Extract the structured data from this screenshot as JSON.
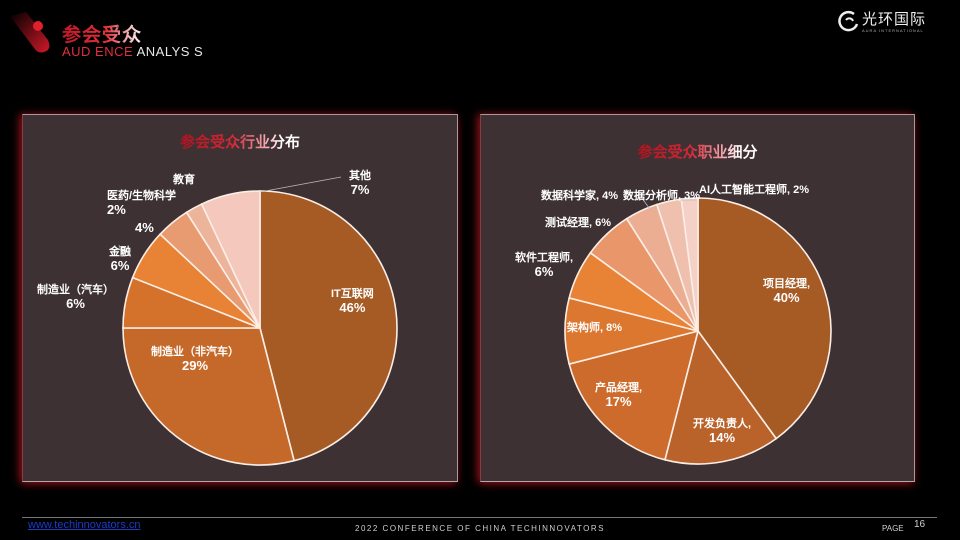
{
  "header": {
    "title_cn": "参会受众",
    "title_en_red": "AUD ENCE",
    "title_en_white": "ANALYS S",
    "brand_cn": "光环国际",
    "brand_en": "AURA INTERNATIONAL",
    "accent_color": "#e0303c"
  },
  "footer": {
    "link": "www.techinnovators.cn",
    "conference": "2022 CONFERENCE OF CHINA TECHINNOVATORS",
    "page_label": "PAGE",
    "page_number": "16"
  },
  "chart_data": [
    {
      "type": "pie",
      "title": "参会受众行业分布",
      "categories": [
        "IT互联网",
        "制造业（非汽车）",
        "制造业（汽车）",
        "金融",
        "4%",
        "医药/生物科学",
        "教育/其他"
      ],
      "slices": [
        {
          "label": "IT互联网",
          "value": 46,
          "color": "#a65a24"
        },
        {
          "label": "制造业（非汽车）",
          "value": 29,
          "color": "#c5692a"
        },
        {
          "label": "制造业（汽车）",
          "value": 6,
          "color": "#d4722c"
        },
        {
          "label": "金融",
          "value": 6,
          "color": "#e88234"
        },
        {
          "label": "",
          "value": 4,
          "color": "#e89a70"
        },
        {
          "label": "医药/生物科学",
          "value": 2,
          "color": "#ecb49a"
        },
        {
          "label": "其他",
          "value": 7,
          "color": "#f4c8bc"
        }
      ],
      "labels": {
        "it": {
          "name": "IT互联网",
          "pct": "46%"
        },
        "mfg_non_auto": {
          "name": "制造业（非汽车）",
          "pct": "29%"
        },
        "mfg_auto": {
          "name": "制造业（汽车）",
          "pct": "6%"
        },
        "finance": {
          "name": "金融",
          "pct": "6%"
        },
        "unnamed": {
          "pct": "4%"
        },
        "pharma": {
          "name": "医药/生物科学",
          "pct": "2%"
        },
        "education": {
          "name": "教育"
        },
        "other": {
          "name": "其他",
          "pct": "7%"
        }
      }
    },
    {
      "type": "pie",
      "title": "参会受众职业细分",
      "slices": [
        {
          "label": "项目经理",
          "value": 40,
          "color": "#a65a24"
        },
        {
          "label": "开发负责人",
          "value": 14,
          "color": "#b9622a"
        },
        {
          "label": "产品经理",
          "value": 17,
          "color": "#cc6b2c"
        },
        {
          "label": "架构师",
          "value": 8,
          "color": "#dc772f"
        },
        {
          "label": "软件工程师",
          "value": 6,
          "color": "#e88234"
        },
        {
          "label": "测试经理",
          "value": 6,
          "color": "#e8966a"
        },
        {
          "label": "数据科学家",
          "value": 4,
          "color": "#ecae92"
        },
        {
          "label": "数据分析师",
          "value": 3,
          "color": "#f0c0ae"
        },
        {
          "label": "AI人工智能工程师",
          "value": 2,
          "color": "#f4d0c6"
        }
      ],
      "labels": {
        "pm": "项目经理,",
        "pm_pct": "40%",
        "dev_lead": "开发负责人,",
        "dev_lead_pct": "14%",
        "product": "产品经理,",
        "product_pct": "17%",
        "architect": "架构师, 8%",
        "swe": "软件工程师,",
        "swe_pct": "6%",
        "test": "测试经理, 6%",
        "ds": "数据科学家, 4%",
        "da": "数据分析师, 3%",
        "ai": "AI人工智能工程师, 2%"
      }
    }
  ]
}
